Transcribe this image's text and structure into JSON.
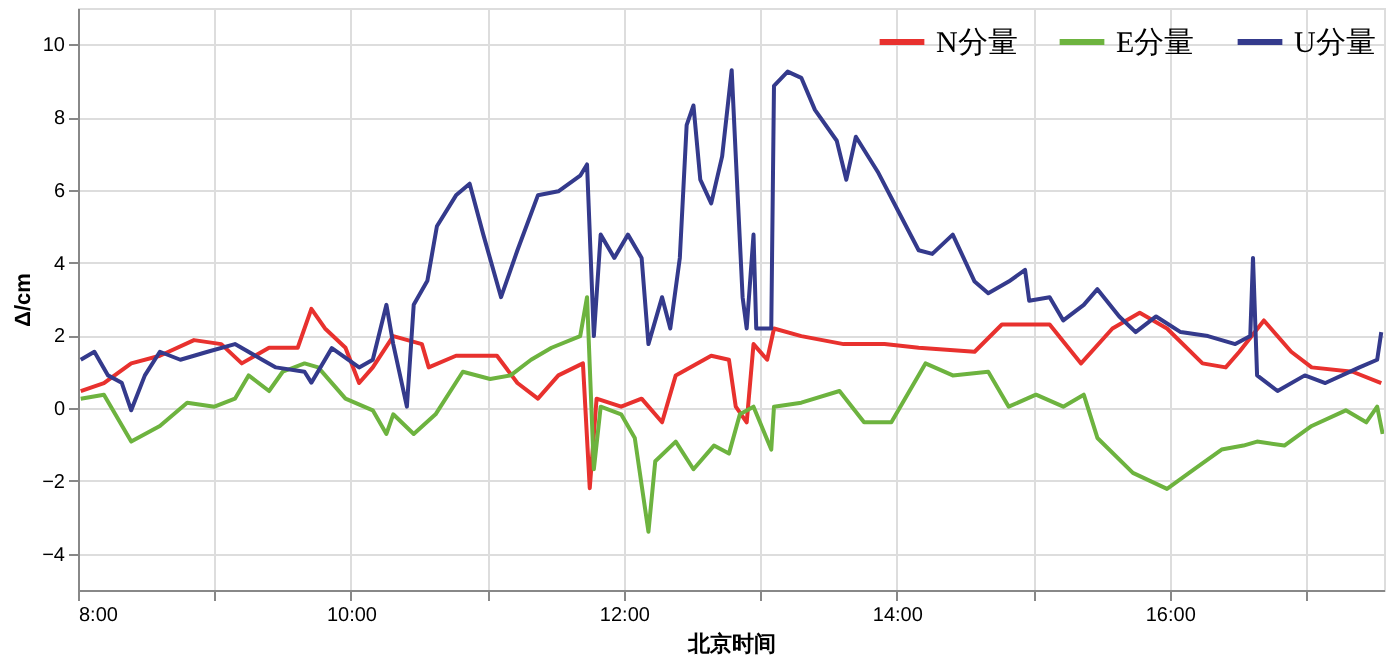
{
  "chart_data": {
    "type": "line",
    "xlabel": "北京时间",
    "ylabel": "Δ/cm",
    "xlim": [
      8,
      17.57
    ],
    "ylim": [
      -5,
      11
    ],
    "xticks": [
      {
        "value": 8,
        "label": "8:00"
      },
      {
        "value": 9,
        "label": null
      },
      {
        "value": 10,
        "label": "10:00"
      },
      {
        "value": 11,
        "label": null
      },
      {
        "value": 12,
        "label": "12:00"
      },
      {
        "value": 13,
        "label": null
      },
      {
        "value": 14,
        "label": "14:00"
      },
      {
        "value": 15,
        "label": null
      },
      {
        "value": 16,
        "label": "16:00"
      },
      {
        "value": 17,
        "label": null
      }
    ],
    "yticks": [
      -4,
      -2,
      0,
      2,
      4,
      6,
      8,
      10
    ],
    "grid": true,
    "legend": "top right",
    "line_style": "solid",
    "marker": "none",
    "series": [
      {
        "name": "N分量",
        "color": "#e8312e",
        "x": [
          8.02,
          8.19,
          8.39,
          8.6,
          8.85,
          9.05,
          9.2,
          9.4,
          9.61,
          9.71,
          9.81,
          9.96,
          10.06,
          10.16,
          10.31,
          10.52,
          10.57,
          10.77,
          11.07,
          11.22,
          11.37,
          11.52,
          11.7,
          11.75,
          11.8,
          11.98,
          12.13,
          12.28,
          12.38,
          12.64,
          12.77,
          12.82,
          12.9,
          12.95,
          13.05,
          13.1,
          13.3,
          13.61,
          13.91,
          14.16,
          14.57,
          14.77,
          15.12,
          15.35,
          15.58,
          15.78,
          15.98,
          16.24,
          16.41,
          16.51,
          16.69,
          16.89,
          17.04,
          17.34,
          17.55
        ],
        "values": [
          0.47,
          0.69,
          1.23,
          1.44,
          1.87,
          1.76,
          1.23,
          1.66,
          1.66,
          2.73,
          2.19,
          1.66,
          0.69,
          1.12,
          1.98,
          1.76,
          1.12,
          1.44,
          1.44,
          0.69,
          0.26,
          0.9,
          1.23,
          -2.2,
          0.26,
          0.04,
          0.26,
          -0.39,
          0.9,
          1.44,
          1.33,
          0.04,
          -0.39,
          1.76,
          1.33,
          2.19,
          1.98,
          1.76,
          1.76,
          1.66,
          1.55,
          2.3,
          2.3,
          1.23,
          2.19,
          2.62,
          2.19,
          1.23,
          1.12,
          1.55,
          2.41,
          1.55,
          1.12,
          1.0,
          0.69
        ]
      },
      {
        "name": "E分量",
        "color": "#6db33f",
        "x": [
          8.02,
          8.19,
          8.39,
          8.6,
          8.8,
          9.0,
          9.15,
          9.25,
          9.4,
          9.5,
          9.66,
          9.76,
          9.96,
          10.16,
          10.26,
          10.31,
          10.46,
          10.62,
          10.82,
          11.02,
          11.17,
          11.32,
          11.47,
          11.68,
          11.73,
          11.78,
          11.83,
          11.98,
          12.08,
          12.18,
          12.23,
          12.38,
          12.51,
          12.66,
          12.77,
          12.85,
          12.95,
          13.08,
          13.1,
          13.3,
          13.58,
          13.76,
          13.96,
          14.21,
          14.41,
          14.67,
          14.82,
          15.02,
          15.22,
          15.37,
          15.47,
          15.73,
          15.98,
          16.18,
          16.38,
          16.54,
          16.64,
          16.84,
          17.04,
          17.29,
          17.44,
          17.52,
          17.56
        ],
        "values": [
          0.26,
          0.37,
          -0.92,
          -0.49,
          0.15,
          0.04,
          0.26,
          0.9,
          0.47,
          1.0,
          1.23,
          1.12,
          0.26,
          -0.06,
          -0.71,
          -0.17,
          -0.71,
          -0.17,
          1.0,
          0.8,
          0.9,
          1.33,
          1.66,
          1.98,
          3.05,
          -1.68,
          0.04,
          -0.17,
          -0.82,
          -3.4,
          -1.46,
          -0.92,
          -1.68,
          -1.03,
          -1.25,
          -0.17,
          0.04,
          -1.14,
          0.04,
          0.15,
          0.47,
          -0.39,
          -0.39,
          1.23,
          0.9,
          1.0,
          0.04,
          0.37,
          0.04,
          0.37,
          -0.82,
          -1.78,
          -2.22,
          -1.68,
          -1.14,
          -1.03,
          -0.92,
          -1.03,
          -0.49,
          -0.06,
          -0.39,
          0.04,
          -0.71
        ]
      },
      {
        "name": "U分量",
        "color": "#343a8c",
        "x": [
          8.02,
          8.12,
          8.22,
          8.32,
          8.39,
          8.49,
          8.6,
          8.75,
          8.95,
          9.15,
          9.35,
          9.45,
          9.66,
          9.71,
          9.86,
          10.06,
          10.16,
          10.26,
          10.31,
          10.41,
          10.46,
          10.56,
          10.63,
          10.77,
          10.87,
          10.97,
          11.1,
          11.22,
          11.37,
          11.52,
          11.68,
          11.73,
          11.78,
          11.83,
          11.93,
          12.03,
          12.13,
          12.18,
          12.28,
          12.34,
          12.41,
          12.46,
          12.51,
          12.56,
          12.64,
          12.72,
          12.79,
          12.82,
          12.87,
          12.9,
          12.95,
          12.97,
          13.08,
          13.1,
          13.2,
          13.3,
          13.4,
          13.56,
          13.63,
          13.7,
          13.86,
          14.01,
          14.16,
          14.26,
          14.41,
          14.57,
          14.67,
          14.82,
          14.94,
          14.97,
          15.12,
          15.22,
          15.37,
          15.47,
          15.63,
          15.75,
          15.9,
          16.08,
          16.28,
          16.48,
          16.59,
          16.61,
          16.64,
          16.79,
          16.99,
          17.14,
          17.39,
          17.52,
          17.55
        ],
        "values": [
          1.33,
          1.55,
          0.9,
          0.7,
          -0.06,
          0.9,
          1.55,
          1.33,
          1.55,
          1.76,
          1.33,
          1.12,
          1.0,
          0.7,
          1.65,
          1.12,
          1.33,
          2.84,
          1.76,
          0.04,
          2.84,
          3.5,
          5.0,
          5.85,
          6.17,
          4.77,
          3.05,
          4.34,
          5.85,
          5.96,
          6.39,
          6.7,
          1.98,
          4.77,
          4.13,
          4.77,
          4.13,
          1.76,
          3.05,
          2.19,
          4.13,
          7.78,
          8.32,
          6.28,
          5.63,
          6.92,
          9.29,
          6.92,
          3.05,
          2.19,
          4.77,
          2.19,
          2.19,
          8.86,
          9.25,
          9.08,
          8.2,
          7.35,
          6.28,
          7.46,
          6.5,
          5.42,
          4.34,
          4.24,
          4.77,
          3.48,
          3.16,
          3.48,
          3.8,
          2.95,
          3.05,
          2.41,
          2.84,
          3.27,
          2.52,
          2.09,
          2.52,
          2.09,
          1.98,
          1.76,
          1.98,
          4.13,
          0.9,
          0.47,
          0.9,
          0.69,
          1.12,
          1.33,
          2.09
        ]
      }
    ]
  }
}
